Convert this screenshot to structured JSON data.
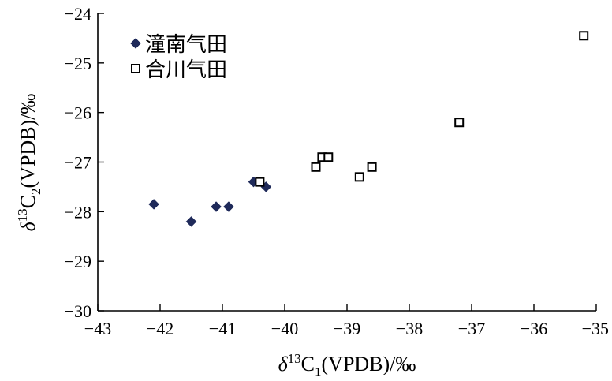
{
  "chart_data": {
    "type": "scatter",
    "xlabel": {
      "delta": "δ",
      "sup": "13",
      "base": "C",
      "sub": "1",
      "rest": "(VPDB)/‰"
    },
    "ylabel": {
      "delta": "δ",
      "sup": "13",
      "base": "C",
      "sub": "2",
      "rest": "(VPDB)/‰"
    },
    "xlim": [
      -43,
      -35
    ],
    "ylim": [
      -30,
      -24
    ],
    "xticks": [
      -43,
      -42,
      -41,
      -40,
      -39,
      -38,
      -37,
      -36,
      -35
    ],
    "yticks": [
      -30,
      -29,
      -28,
      -27,
      -26,
      -25,
      -24
    ],
    "xtick_labels": [
      "−43",
      "−42",
      "−41",
      "−40",
      "−39",
      "−38",
      "−37",
      "−36",
      "−35"
    ],
    "ytick_labels": [
      "−30",
      "−29",
      "−28",
      "−27",
      "−26",
      "−25",
      "−24"
    ],
    "grid": false,
    "legend_position": "top-left",
    "series": [
      {
        "name": "潼南气田",
        "marker": "diamond",
        "color": "#1f2a5a",
        "points": [
          {
            "x": -42.1,
            "y": -27.85
          },
          {
            "x": -41.5,
            "y": -28.2
          },
          {
            "x": -41.1,
            "y": -27.9
          },
          {
            "x": -40.9,
            "y": -27.9
          },
          {
            "x": -40.5,
            "y": -27.4
          },
          {
            "x": -40.3,
            "y": -27.5
          }
        ]
      },
      {
        "name": "合川气田",
        "marker": "open-square",
        "color": "#000000",
        "points": [
          {
            "x": -40.4,
            "y": -27.4
          },
          {
            "x": -39.5,
            "y": -27.1
          },
          {
            "x": -39.4,
            "y": -26.9
          },
          {
            "x": -39.3,
            "y": -26.9
          },
          {
            "x": -38.8,
            "y": -27.3
          },
          {
            "x": -38.6,
            "y": -27.1
          },
          {
            "x": -37.2,
            "y": -26.2
          },
          {
            "x": -35.2,
            "y": -24.45
          }
        ]
      }
    ]
  }
}
